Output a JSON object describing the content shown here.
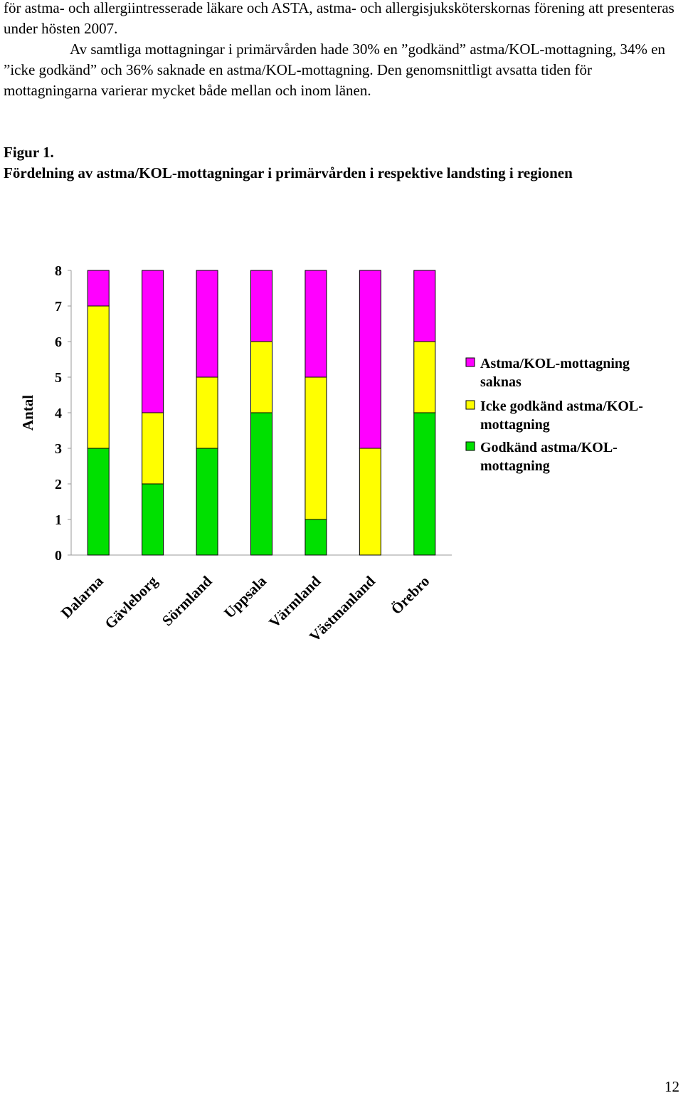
{
  "paragraphs": [
    "för astma- och allergiintresserade läkare och ASTA, astma- och allergisjuksköterskornas förening att presenteras under hösten 2007.",
    "Av samtliga mottagningar i primärvården hade 30% en ”godkänd” astma/KOL-mottagning, 34% en ”icke godkänd” och 36% saknade en astma/KOL-mottagning. Den genomsnittligt avsatta tiden för mottagningarna varierar mycket både mellan och inom länen."
  ],
  "figure": {
    "number": "Figur 1.",
    "title": "Fördelning av astma/KOL-mottagningar i primärvården i respektive landsting i regionen"
  },
  "chart_data": {
    "type": "bar",
    "stacked": true,
    "categories": [
      "Dalarna",
      "Gävleborg",
      "Sörmland",
      "Uppsala",
      "Värmland",
      "Västmanland",
      "Örebro"
    ],
    "series": [
      {
        "name": "Godkänd astma/KOL-mottagning",
        "color": "#00e000",
        "values": [
          3,
          2,
          3,
          4,
          1,
          0,
          4
        ]
      },
      {
        "name": "Icke godkänd astma/KOL-mottagning",
        "color": "#ffff00",
        "values": [
          4,
          2,
          2,
          2,
          4,
          3,
          2
        ]
      },
      {
        "name": "Astma/KOL-mottagning saknas",
        "color": "#ff00ff",
        "values": [
          1,
          4,
          3,
          2,
          3,
          5,
          2
        ]
      }
    ],
    "ylabel": "Antal",
    "xlabel": "",
    "ylim": [
      0,
      8
    ],
    "yticks": [
      0,
      1,
      2,
      3,
      4,
      5,
      6,
      7,
      8
    ],
    "legend_position": "right",
    "legend_order": [
      "Astma/KOL-mottagning saknas",
      "Icke godkänd astma/KOL-mottagning",
      "Godkänd astma/KOL-mottagning"
    ],
    "legend_lines": [
      [
        "Astma/KOL-mottagning",
        "saknas"
      ],
      [
        "Icke godkänd astma/KOL-",
        "mottagning"
      ],
      [
        "Godkänd astma/KOL-",
        "mottagning"
      ]
    ]
  },
  "page_number": "12"
}
